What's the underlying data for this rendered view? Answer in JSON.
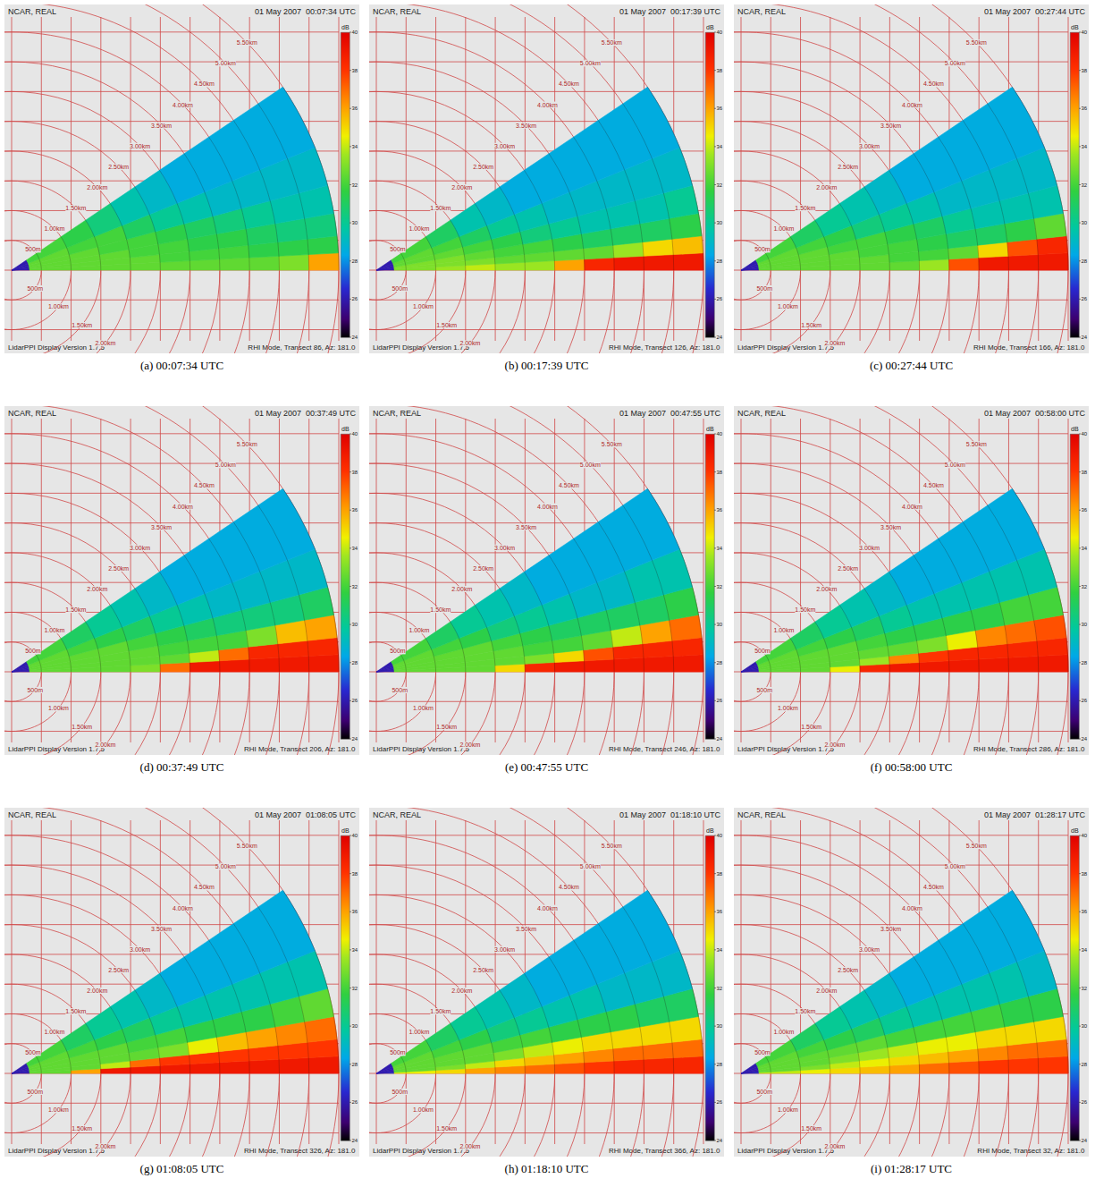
{
  "chart_data": {
    "type": "polar_heatmap",
    "range_km": [
      0,
      5.5
    ],
    "range_bin_edges_km": [
      0,
      0.3,
      1,
      1.5,
      2,
      2.5,
      3,
      3.5,
      4,
      4.5,
      5,
      5.5
    ],
    "elevation_bin_edges_deg": [
      0,
      3,
      6,
      10,
      15,
      22,
      34
    ],
    "range_rings": [
      {
        "value": 0.5,
        "label": "500m"
      },
      {
        "value": 1.0,
        "label": "1.00km"
      },
      {
        "value": 1.5,
        "label": "1.50km"
      },
      {
        "value": 2.0,
        "label": "2.00km"
      },
      {
        "value": 2.5,
        "label": "2.50km"
      },
      {
        "value": 3.0,
        "label": "3.00km"
      },
      {
        "value": 3.5,
        "label": "3.50km"
      },
      {
        "value": 4.0,
        "label": "4.00km"
      },
      {
        "value": 4.5,
        "label": "4.50km"
      },
      {
        "value": 5.0,
        "label": "5.00km"
      },
      {
        "value": 5.5,
        "label": "5.50km"
      }
    ],
    "lower_ring_labels": [
      {
        "value": 0.5,
        "label": "500m"
      },
      {
        "value": 1.0,
        "label": "1.00km"
      },
      {
        "value": 1.5,
        "label": "1.50km"
      },
      {
        "value": 2.0,
        "label": "2.00km"
      }
    ],
    "colorbar": {
      "label": "dB",
      "range": [
        24,
        40
      ],
      "ticks": [
        24,
        26,
        28,
        30,
        32,
        34,
        36,
        38,
        40
      ]
    },
    "panels": [
      {
        "caption": "(a) 00:07:34 UTC",
        "header_left": "NCAR, REAL",
        "header_right": "01 May 2007  00:07:34 UTC",
        "footer_left": "LidarPPI Display Version 1.7.5",
        "footer_right": "RHI Mode, Transect 86, Az: 181.0",
        "field": [
          [
            26,
            32.5,
            32.5,
            32.5,
            32.5,
            32.5,
            32.5,
            32.5,
            32.5,
            33,
            36
          ],
          [
            26,
            32.5,
            32.5,
            32.5,
            32.5,
            32,
            32,
            32,
            31.5,
            31.5,
            31.5
          ],
          [
            26,
            32.5,
            32.5,
            32.5,
            32,
            32,
            31.5,
            31.5,
            31,
            30.5,
            30.5
          ],
          [
            26,
            32.5,
            32.5,
            32,
            32,
            31.5,
            31,
            30.5,
            30,
            29.5,
            29.5
          ],
          [
            26,
            32.5,
            32,
            32,
            31,
            30,
            29.5,
            29,
            29,
            29,
            29
          ],
          [
            26,
            32,
            31.5,
            30.5,
            29.5,
            29,
            28.5,
            28.5,
            28.5,
            28.5,
            28.5
          ]
        ]
      },
      {
        "caption": "(b) 00:17:39 UTC",
        "header_left": "NCAR, REAL",
        "header_right": "01 May 2007  00:17:39 UTC",
        "footer_left": "LidarPPI Display Version 1.7.5",
        "footer_right": "RHI Mode, Transect 126, Az: 181.0",
        "field": [
          [
            26,
            33,
            33.5,
            34,
            33.5,
            33.5,
            36,
            38.5,
            39,
            39,
            39
          ],
          [
            26,
            33,
            33,
            33,
            32.5,
            32.5,
            32.5,
            32.5,
            33.5,
            35,
            35.5
          ],
          [
            26,
            33,
            33,
            32.5,
            32,
            32,
            31.5,
            31,
            31,
            31,
            31.5
          ],
          [
            26,
            32.5,
            32.5,
            32,
            31.5,
            30.5,
            30,
            29.5,
            29.5,
            29.5,
            30
          ],
          [
            26,
            32.5,
            32,
            31,
            30,
            29.5,
            29,
            29,
            29,
            29,
            29
          ],
          [
            26,
            32,
            31,
            29.5,
            29,
            28.5,
            28.5,
            28.5,
            28.5,
            28.5,
            28.5
          ]
        ]
      },
      {
        "caption": "(c) 00:27:44 UTC",
        "header_left": "NCAR, REAL",
        "header_right": "01 May 2007  00:27:44 UTC",
        "footer_left": "LidarPPI Display Version 1.7.5",
        "footer_right": "RHI Mode, Transect 166, Az: 181.0",
        "field": [
          [
            26,
            32.5,
            32.5,
            32.5,
            32.5,
            32.5,
            33.5,
            37.5,
            39,
            39,
            39
          ],
          [
            26,
            32.5,
            32.5,
            32.5,
            32.5,
            32,
            32,
            32.5,
            35,
            37.5,
            38.5
          ],
          [
            26,
            32.5,
            32.5,
            32.5,
            32,
            32,
            31.5,
            31,
            31,
            31.5,
            32.5
          ],
          [
            26,
            32.5,
            32.5,
            32,
            32,
            31.5,
            31,
            30,
            29.5,
            29.5,
            29.5
          ],
          [
            26,
            32.5,
            32,
            31.5,
            30.5,
            30,
            29.5,
            29,
            29,
            29,
            29
          ],
          [
            26,
            32,
            31,
            30,
            29.5,
            29,
            28.5,
            28.5,
            28.5,
            28.5,
            28.5
          ]
        ]
      },
      {
        "caption": "(d) 00:37:49 UTC",
        "header_left": "NCAR, REAL",
        "header_right": "01 May 2007  00:37:49 UTC",
        "footer_left": "LidarPPI Display Version 1.7.5",
        "footer_right": "RHI Mode, Transect 206, Az: 181.0",
        "field": [
          [
            26,
            32.5,
            32.5,
            32.5,
            33,
            37,
            39,
            39,
            39,
            39,
            39
          ],
          [
            26,
            32.5,
            32.5,
            32.5,
            32.5,
            32.5,
            34,
            37,
            38.5,
            38.5,
            38.5
          ],
          [
            26,
            32.5,
            32.5,
            32.5,
            32.5,
            32,
            32,
            32,
            33,
            35.5,
            36
          ],
          [
            26,
            32.5,
            32.5,
            32.5,
            32,
            31.5,
            31,
            30.5,
            30.5,
            30.5,
            31
          ],
          [
            26,
            32.5,
            32,
            31.5,
            31,
            30,
            29.5,
            29,
            29,
            29,
            29
          ],
          [
            26,
            32,
            31,
            30,
            29.5,
            29,
            28.5,
            28.5,
            28.5,
            28.5,
            28.5
          ]
        ]
      },
      {
        "caption": "(e) 00:47:55 UTC",
        "header_left": "NCAR, REAL",
        "header_right": "01 May 2007  00:47:55 UTC",
        "footer_left": "LidarPPI Display Version 1.7.5",
        "footer_right": "RHI Mode, Transect 246, Az: 181.0",
        "field": [
          [
            26,
            32.5,
            32.5,
            32.5,
            35,
            38.5,
            39,
            39,
            39,
            39,
            39
          ],
          [
            26,
            32.5,
            32.5,
            32.5,
            32.5,
            33,
            35,
            37.5,
            38.5,
            38.5,
            38.5
          ],
          [
            26,
            32.5,
            32.5,
            32.5,
            32.5,
            32,
            32,
            32.5,
            34,
            36,
            37
          ],
          [
            26,
            32.5,
            32.5,
            32.5,
            32,
            31.5,
            31,
            31,
            31,
            31,
            31.5
          ],
          [
            26,
            32.5,
            32,
            31.5,
            30.5,
            30,
            29.5,
            29,
            29,
            29.5,
            29.5
          ],
          [
            26,
            32,
            31,
            30,
            29.5,
            29,
            28.5,
            28.5,
            28.5,
            28.5,
            28.5
          ]
        ]
      },
      {
        "caption": "(f) 00:58:00 UTC",
        "header_left": "NCAR, REAL",
        "header_right": "01 May 2007  00:58:00 UTC",
        "footer_left": "LidarPPI Display Version 1.7.5",
        "footer_right": "RHI Mode, Transect 286, Az: 181.0",
        "field": [
          [
            26,
            32.5,
            32.5,
            34.5,
            38.5,
            39,
            39,
            39,
            39,
            39,
            39
          ],
          [
            26,
            32.5,
            32.5,
            32.5,
            33.5,
            36.5,
            38,
            38.5,
            38.5,
            38.5,
            38.5
          ],
          [
            26,
            32.5,
            32.5,
            32.5,
            32.5,
            32.5,
            33,
            34.5,
            36.5,
            37,
            37.5
          ],
          [
            26,
            32.5,
            32.5,
            32.5,
            32,
            31.5,
            31.5,
            31.5,
            31.5,
            32,
            32
          ],
          [
            26,
            32.5,
            32,
            31.5,
            31,
            30,
            29.5,
            29.5,
            29.5,
            29.5,
            29.5
          ],
          [
            26,
            32,
            31,
            30,
            29.5,
            29,
            28.5,
            28.5,
            28.5,
            28.5,
            28.5
          ]
        ]
      },
      {
        "caption": "(g) 01:08:05 UTC",
        "header_left": "NCAR, REAL",
        "header_right": "01 May 2007  01:08:05 UTC",
        "footer_left": "LidarPPI Display Version 1.7.5",
        "footer_right": "RHI Mode, Transect 326, Az: 181.0",
        "field": [
          [
            26,
            32.5,
            36,
            39,
            39,
            39,
            39,
            39,
            39,
            39,
            39
          ],
          [
            26,
            32.5,
            32.5,
            34,
            37,
            38,
            38,
            38,
            38,
            38,
            38
          ],
          [
            26,
            32.5,
            32.5,
            32.5,
            32.5,
            33,
            34.5,
            35.5,
            36,
            36.5,
            37
          ],
          [
            26,
            32.5,
            32.5,
            32.5,
            32,
            32,
            31.5,
            31.5,
            31.5,
            32,
            32.5
          ],
          [
            26,
            32.5,
            32,
            31.5,
            31,
            30,
            29.5,
            29.5,
            29.5,
            29.5,
            29.5
          ],
          [
            26,
            32,
            31,
            30,
            29.5,
            29,
            28.5,
            28.5,
            28.5,
            28.5,
            28.5
          ]
        ]
      },
      {
        "caption": "(h) 01:18:10 UTC",
        "header_left": "NCAR, REAL",
        "header_right": "01 May 2007  01:18:10 UTC",
        "footer_left": "LidarPPI Display Version 1.7.5",
        "footer_right": "RHI Mode, Transect 366, Az: 181.0",
        "field": [
          [
            27,
            34.5,
            35,
            36,
            36.5,
            37,
            37.5,
            38,
            38.5,
            38.5,
            38.5
          ],
          [
            26,
            32.5,
            33,
            34,
            35,
            35.5,
            36,
            36.5,
            37,
            37,
            37
          ],
          [
            26,
            32.5,
            32.5,
            32.5,
            33,
            34,
            34.5,
            35,
            35,
            35,
            35
          ],
          [
            26,
            32.5,
            32.5,
            32.5,
            32,
            32,
            31.5,
            31.5,
            31.5,
            31,
            31
          ],
          [
            26,
            32.5,
            32,
            31.5,
            30.5,
            30,
            29.5,
            29.5,
            29,
            29,
            29
          ],
          [
            26,
            32,
            31,
            30,
            29.5,
            29,
            28.5,
            28.5,
            28.5,
            28.5,
            28.5
          ]
        ]
      },
      {
        "caption": "(i) 01:28:17 UTC",
        "header_left": "NCAR, REAL",
        "header_right": "01 May 2007  01:28:17 UTC",
        "footer_left": "LidarPPI Display Version 1.7.5",
        "footer_right": "RHI Mode, Transect 32, Az: 181.0",
        "field": [
          [
            27,
            34,
            34.5,
            35,
            35.5,
            36,
            37,
            37.5,
            38,
            38,
            38
          ],
          [
            26,
            32.5,
            33,
            34,
            34.5,
            35,
            35.5,
            36,
            36.5,
            37,
            37
          ],
          [
            26,
            32.5,
            32.5,
            33,
            33.5,
            34,
            34.5,
            34.5,
            35,
            35,
            35
          ],
          [
            26,
            32.5,
            32.5,
            32.5,
            32.5,
            32,
            32,
            32,
            32,
            31.5,
            31.5
          ],
          [
            26,
            32.5,
            32,
            31.5,
            31,
            30,
            29.5,
            29.5,
            29.5,
            29.5,
            29
          ],
          [
            26,
            32,
            31,
            30,
            29.5,
            29,
            28.5,
            28.5,
            28.5,
            28.5,
            28.5
          ]
        ]
      }
    ]
  }
}
